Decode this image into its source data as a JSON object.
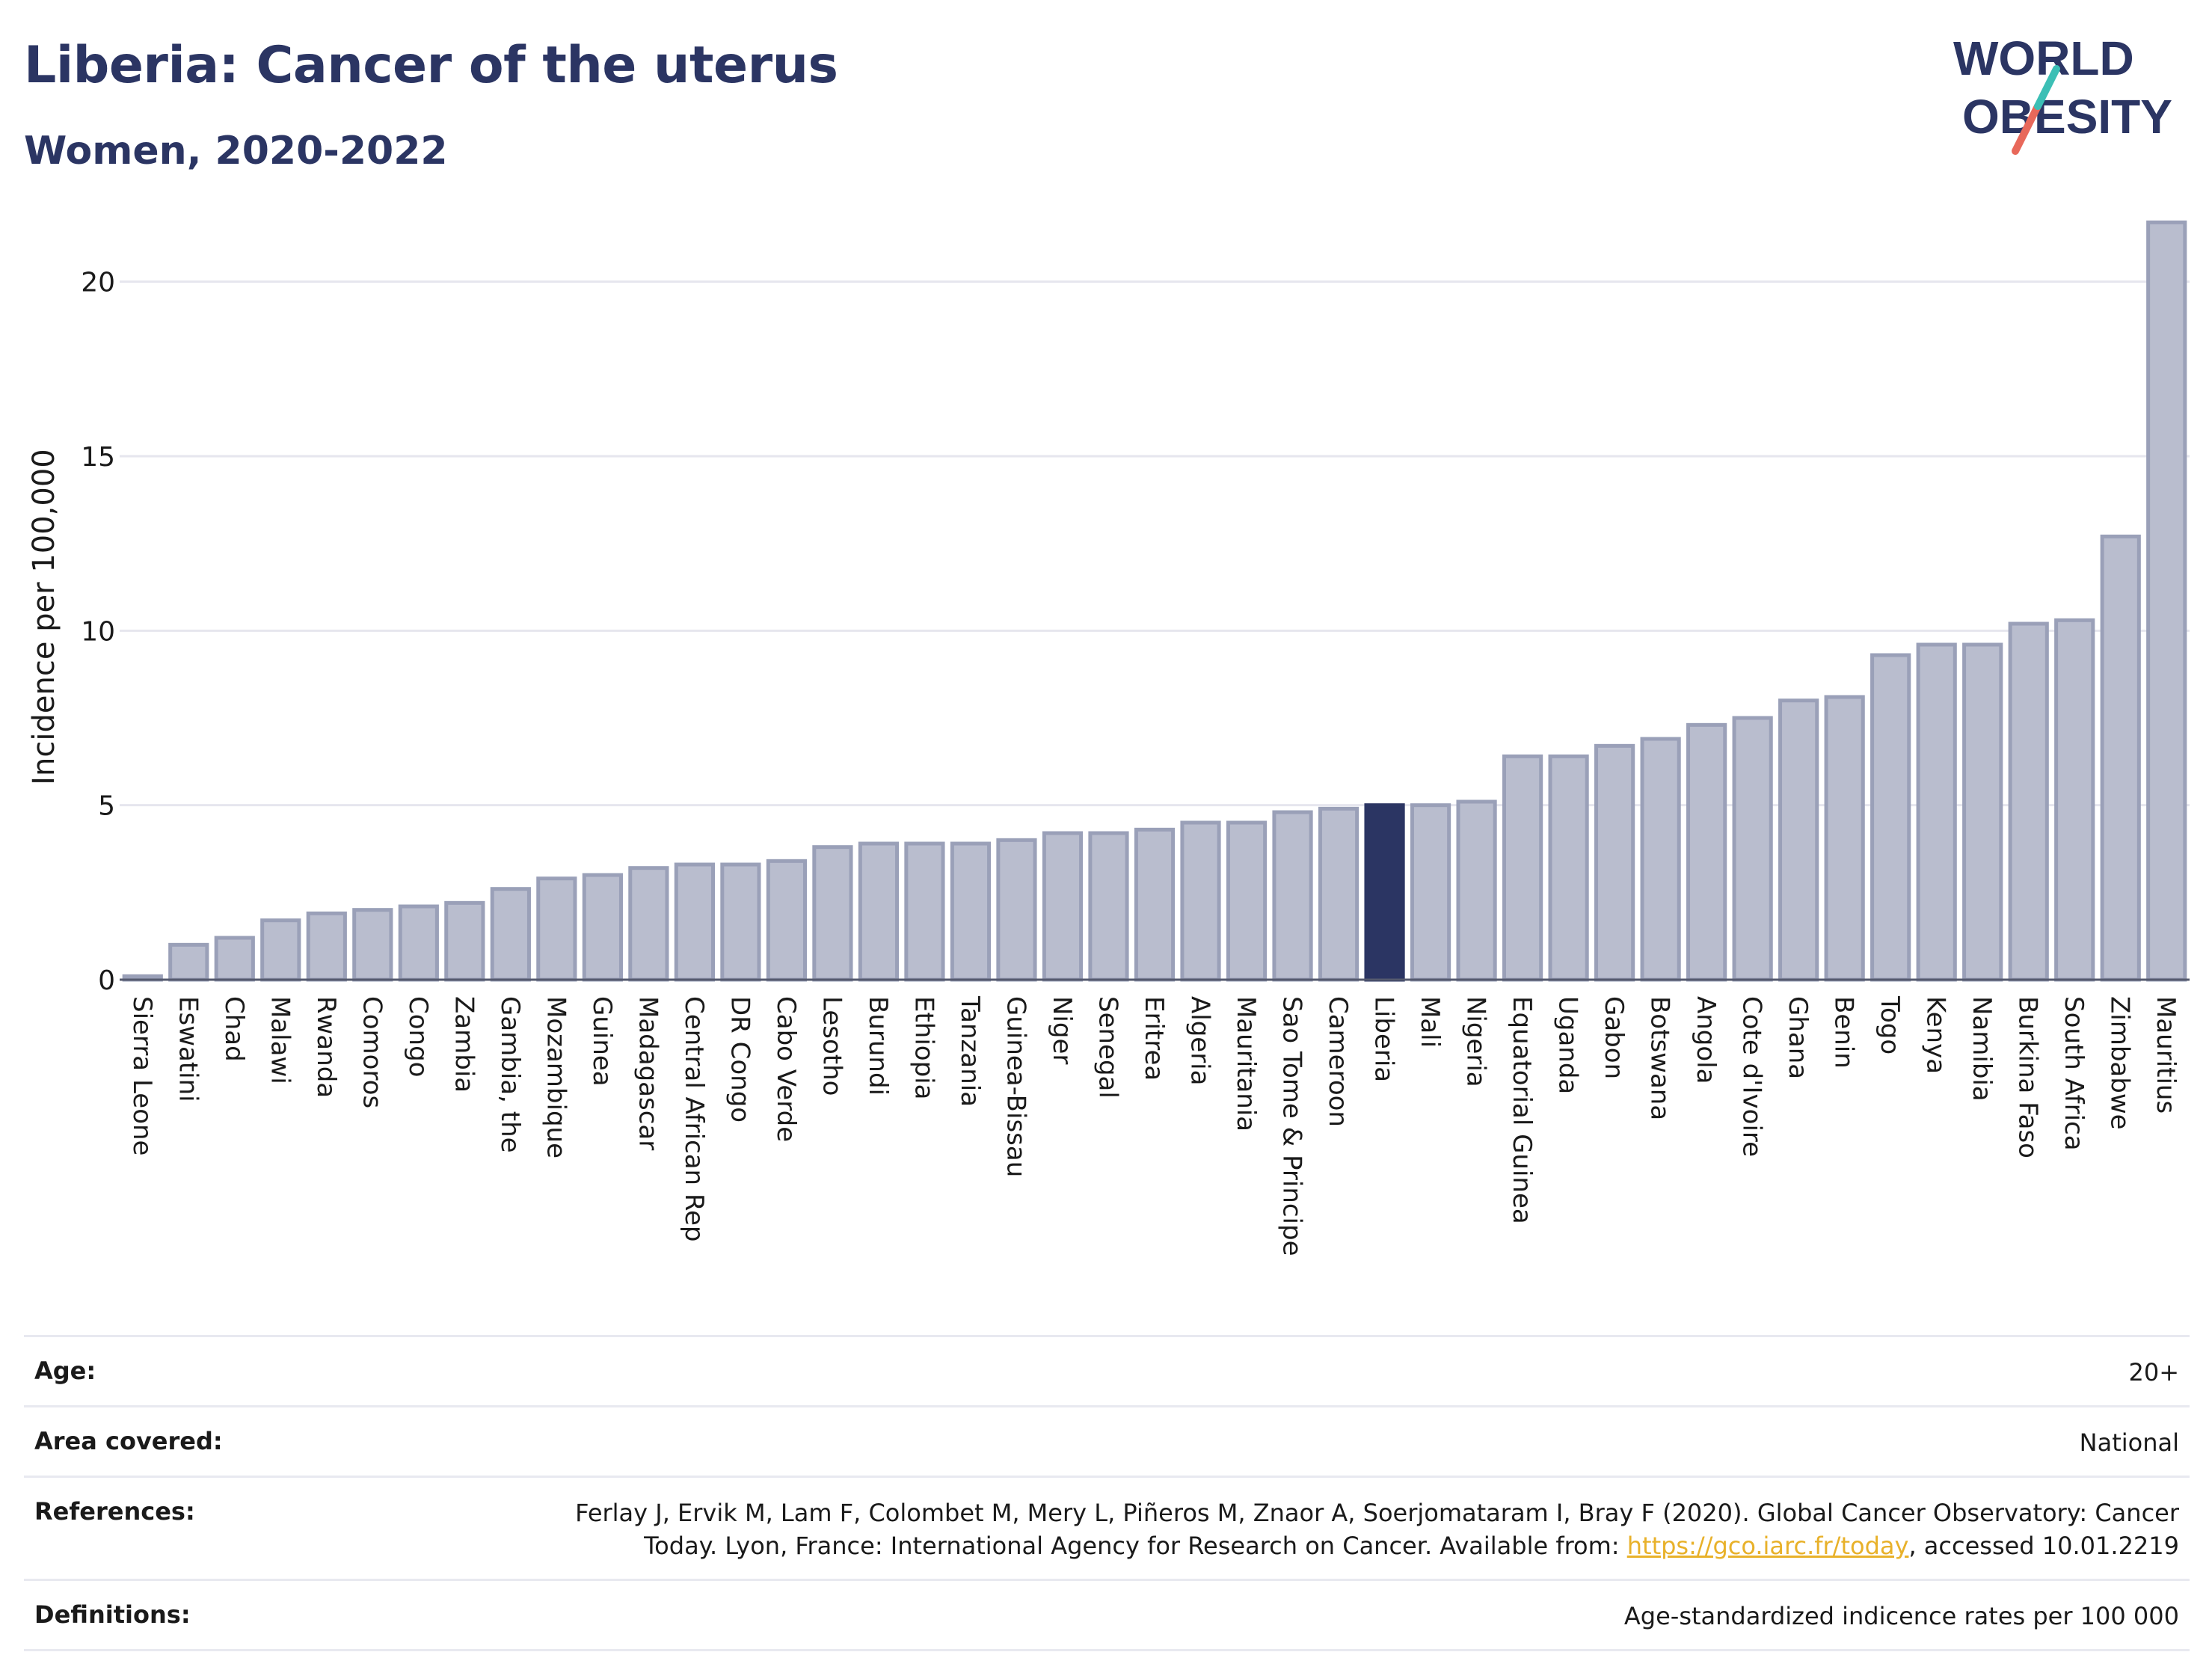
{
  "header": {
    "title": "Liberia: Cancer of the uterus",
    "subtitle": "Women, 2020-2022"
  },
  "logo": {
    "line1": "WORLD",
    "line2": "OBESITY"
  },
  "colors": {
    "bar": "#b9bdce",
    "bar_stroke": "#9aa0b8",
    "highlight": "#2b3563",
    "title": "#2b3563",
    "grid": "#e6e6ee",
    "link": "#e8b12a"
  },
  "chart_data": {
    "type": "bar",
    "ylabel": "Incidence per 100,000",
    "xlabel": "",
    "ylim": [
      0,
      22.5
    ],
    "yticks": [
      0,
      5,
      10,
      15,
      20
    ],
    "grid": true,
    "highlight": "Liberia",
    "categories": [
      "Sierra Leone",
      "Eswatini",
      "Chad",
      "Malawi",
      "Rwanda",
      "Comoros",
      "Congo",
      "Zambia",
      "Gambia, the",
      "Mozambique",
      "Guinea",
      "Madagascar",
      "Central African Rep",
      "DR Congo",
      "Cabo Verde",
      "Lesotho",
      "Burundi",
      "Ethiopia",
      "Tanzania",
      "Guinea-Bissau",
      "Niger",
      "Senegal",
      "Eritrea",
      "Algeria",
      "Mauritania",
      "Sao Tome & Principe",
      "Cameroon",
      "Liberia",
      "Mali",
      "Nigeria",
      "Equatorial Guinea",
      "Uganda",
      "Gabon",
      "Botswana",
      "Angola",
      "Cote d'Ivoire",
      "Ghana",
      "Benin",
      "Togo",
      "Kenya",
      "Namibia",
      "Burkina Faso",
      "South Africa",
      "Zimbabwe",
      "Mauritius"
    ],
    "values": [
      0.1,
      1.0,
      1.2,
      1.7,
      1.9,
      2.0,
      2.1,
      2.2,
      2.6,
      2.9,
      3.0,
      3.2,
      3.3,
      3.3,
      3.4,
      3.8,
      3.9,
      3.9,
      3.9,
      4.0,
      4.2,
      4.2,
      4.3,
      4.5,
      4.5,
      4.8,
      4.9,
      5.0,
      5.0,
      5.1,
      6.4,
      6.4,
      6.7,
      6.9,
      7.3,
      7.5,
      8.0,
      8.1,
      9.3,
      9.6,
      9.6,
      10.2,
      10.3,
      12.7,
      21.7
    ]
  },
  "info": {
    "age_label": "Age:",
    "age_value": "20+",
    "area_label": "Area covered:",
    "area_value": "National",
    "references_label": "References:",
    "references_text_1": "Ferlay J, Ervik M, Lam F, Colombet M, Mery L, Piñeros M, Znaor A, Soerjomataram I, Bray F (2020). Global Cancer Observatory: Cancer Today. Lyon, France: International Agency for Research on Cancer. Available from: ",
    "references_link": "https://gco.iarc.fr/today",
    "references_text_2": ", accessed 10.01.2219",
    "definitions_label": "Definitions:",
    "definitions_value": "Age-standardized indicence rates per 100 000"
  }
}
